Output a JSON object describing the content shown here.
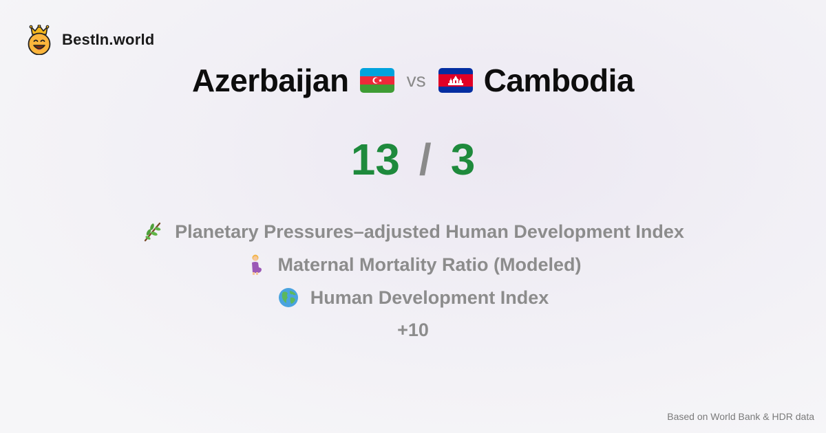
{
  "brand": {
    "name": "BestIn.world",
    "logo_icon": "crowned-smiley-icon"
  },
  "comparison": {
    "left_country": "Azerbaijan",
    "left_flag": "azerbaijan-flag-icon",
    "vs": "vs",
    "right_country": "Cambodia",
    "right_flag": "cambodia-flag-icon"
  },
  "score": {
    "left": "13",
    "separator": "/",
    "right": "3",
    "color": "#1e8a3c"
  },
  "metrics": [
    {
      "icon": "herb-sprig-icon",
      "label": "Planetary Pressures–adjusted Human Development Index"
    },
    {
      "icon": "pregnant-woman-icon",
      "label": "Maternal Mortality Ratio (Modeled)"
    },
    {
      "icon": "globe-icon",
      "label": "Human Development Index"
    }
  ],
  "more": "+10",
  "footer": "Based on World Bank & HDR data"
}
